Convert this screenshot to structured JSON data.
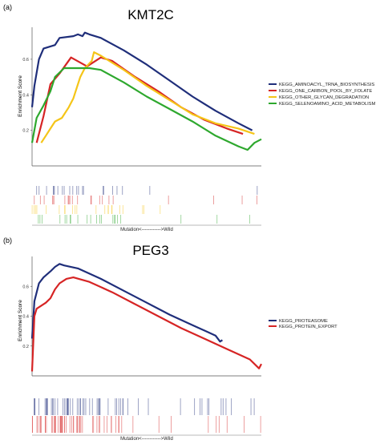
{
  "panels": [
    {
      "tag": "(a)",
      "title": "KMT2C",
      "ylabel": "Enrichment Score",
      "xlabel": "Mutation<------------>Wild",
      "yticks": [
        "0.2",
        "0.4",
        "0.6"
      ],
      "ylim": [
        0.0,
        0.78
      ],
      "legend": [
        {
          "name": "KEGG_AMINOACYL_TRNA_BIOSYNTHESIS",
          "color": "#1f2e7a"
        },
        {
          "name": "KEGG_ONE_CARBON_POOL_BY_FOLATE",
          "color": "#d62424"
        },
        {
          "name": "KEGG_OTHER_GLYCAN_DEGRADATION",
          "color": "#f5c518"
        },
        {
          "name": "KEGG_SELENOAMINO_ACID_METABOLISM",
          "color": "#2ea82e"
        }
      ]
    },
    {
      "tag": "(b)",
      "title": "PEG3",
      "ylabel": "Enrichment Score",
      "xlabel": "Mutation<------------>Wild",
      "yticks": [
        "0.2",
        "0.4",
        "0.6"
      ],
      "ylim": [
        0.0,
        0.8
      ],
      "legend": [
        {
          "name": "KEGG_PROTEASOME",
          "color": "#1f2e7a"
        },
        {
          "name": "KEGG_PROTEIN_EXPORT",
          "color": "#d62424"
        }
      ]
    }
  ],
  "chart_data": [
    {
      "type": "line",
      "title": "KMT2C",
      "xlabel": "Mutation<------------>Wild",
      "ylabel": "Enrichment Score",
      "ylim": [
        0.0,
        0.78
      ],
      "legend_position": "right",
      "series": [
        {
          "name": "KEGG_AMINOACYL_TRNA_BIOSYNTHESIS",
          "color": "#1f2e7a",
          "points": [
            [
              0.0,
              0.33
            ],
            [
              0.01,
              0.45
            ],
            [
              0.03,
              0.6
            ],
            [
              0.05,
              0.66
            ],
            [
              0.1,
              0.68
            ],
            [
              0.12,
              0.72
            ],
            [
              0.18,
              0.73
            ],
            [
              0.2,
              0.74
            ],
            [
              0.22,
              0.73
            ],
            [
              0.23,
              0.75
            ],
            [
              0.25,
              0.74
            ],
            [
              0.3,
              0.72
            ],
            [
              0.4,
              0.65
            ],
            [
              0.5,
              0.57
            ],
            [
              0.6,
              0.48
            ],
            [
              0.7,
              0.39
            ],
            [
              0.8,
              0.31
            ],
            [
              0.9,
              0.24
            ],
            [
              0.96,
              0.2
            ]
          ]
        },
        {
          "name": "KEGG_ONE_CARBON_POOL_BY_FOLATE",
          "color": "#d62424",
          "points": [
            [
              0.02,
              0.13
            ],
            [
              0.05,
              0.28
            ],
            [
              0.08,
              0.46
            ],
            [
              0.12,
              0.52
            ],
            [
              0.17,
              0.61
            ],
            [
              0.24,
              0.56
            ],
            [
              0.3,
              0.61
            ],
            [
              0.35,
              0.59
            ],
            [
              0.45,
              0.5
            ],
            [
              0.55,
              0.42
            ],
            [
              0.65,
              0.33
            ],
            [
              0.75,
              0.26
            ],
            [
              0.85,
              0.21
            ],
            [
              0.92,
              0.18
            ]
          ]
        },
        {
          "name": "KEGG_OTHER_GLYCAN_DEGRADATION",
          "color": "#f5c518",
          "points": [
            [
              0.04,
              0.13
            ],
            [
              0.06,
              0.17
            ],
            [
              0.08,
              0.21
            ],
            [
              0.1,
              0.25
            ],
            [
              0.13,
              0.27
            ],
            [
              0.16,
              0.33
            ],
            [
              0.18,
              0.38
            ],
            [
              0.21,
              0.5
            ],
            [
              0.23,
              0.55
            ],
            [
              0.26,
              0.59
            ],
            [
              0.27,
              0.64
            ],
            [
              0.3,
              0.62
            ],
            [
              0.4,
              0.54
            ],
            [
              0.5,
              0.45
            ],
            [
              0.6,
              0.37
            ],
            [
              0.7,
              0.29
            ],
            [
              0.8,
              0.24
            ],
            [
              0.9,
              0.21
            ],
            [
              0.97,
              0.18
            ]
          ]
        },
        {
          "name": "KEGG_SELENOAMINO_ACID_METABOLISM",
          "color": "#2ea82e",
          "points": [
            [
              0.0,
              0.13
            ],
            [
              0.02,
              0.27
            ],
            [
              0.05,
              0.34
            ],
            [
              0.08,
              0.42
            ],
            [
              0.1,
              0.5
            ],
            [
              0.14,
              0.55
            ],
            [
              0.2,
              0.55
            ],
            [
              0.25,
              0.55
            ],
            [
              0.3,
              0.54
            ],
            [
              0.4,
              0.47
            ],
            [
              0.5,
              0.39
            ],
            [
              0.6,
              0.32
            ],
            [
              0.7,
              0.25
            ],
            [
              0.8,
              0.17
            ],
            [
              0.9,
              0.11
            ],
            [
              0.94,
              0.09
            ],
            [
              0.97,
              0.13
            ],
            [
              1.0,
              0.15
            ]
          ]
        }
      ]
    },
    {
      "type": "line",
      "title": "PEG3",
      "xlabel": "Mutation<------------>Wild",
      "ylabel": "Enrichment Score",
      "ylim": [
        0.0,
        0.8
      ],
      "legend_position": "right",
      "series": [
        {
          "name": "KEGG_PROTEASOME",
          "color": "#1f2e7a",
          "points": [
            [
              0.0,
              0.25
            ],
            [
              0.01,
              0.5
            ],
            [
              0.03,
              0.62
            ],
            [
              0.05,
              0.66
            ],
            [
              0.08,
              0.7
            ],
            [
              0.1,
              0.73
            ],
            [
              0.12,
              0.75
            ],
            [
              0.14,
              0.74
            ],
            [
              0.2,
              0.72
            ],
            [
              0.3,
              0.65
            ],
            [
              0.4,
              0.57
            ],
            [
              0.5,
              0.49
            ],
            [
              0.6,
              0.41
            ],
            [
              0.7,
              0.34
            ],
            [
              0.8,
              0.27
            ],
            [
              0.82,
              0.23
            ],
            [
              0.83,
              0.24
            ]
          ]
        },
        {
          "name": "KEGG_PROTEIN_EXPORT",
          "color": "#d62424",
          "points": [
            [
              0.0,
              0.03
            ],
            [
              0.01,
              0.4
            ],
            [
              0.02,
              0.45
            ],
            [
              0.06,
              0.49
            ],
            [
              0.08,
              0.52
            ],
            [
              0.1,
              0.58
            ],
            [
              0.12,
              0.62
            ],
            [
              0.15,
              0.65
            ],
            [
              0.18,
              0.66
            ],
            [
              0.25,
              0.63
            ],
            [
              0.35,
              0.56
            ],
            [
              0.45,
              0.48
            ],
            [
              0.55,
              0.4
            ],
            [
              0.65,
              0.32
            ],
            [
              0.75,
              0.25
            ],
            [
              0.85,
              0.18
            ],
            [
              0.95,
              0.11
            ],
            [
              0.99,
              0.05
            ],
            [
              1.0,
              0.08
            ]
          ]
        }
      ]
    }
  ]
}
